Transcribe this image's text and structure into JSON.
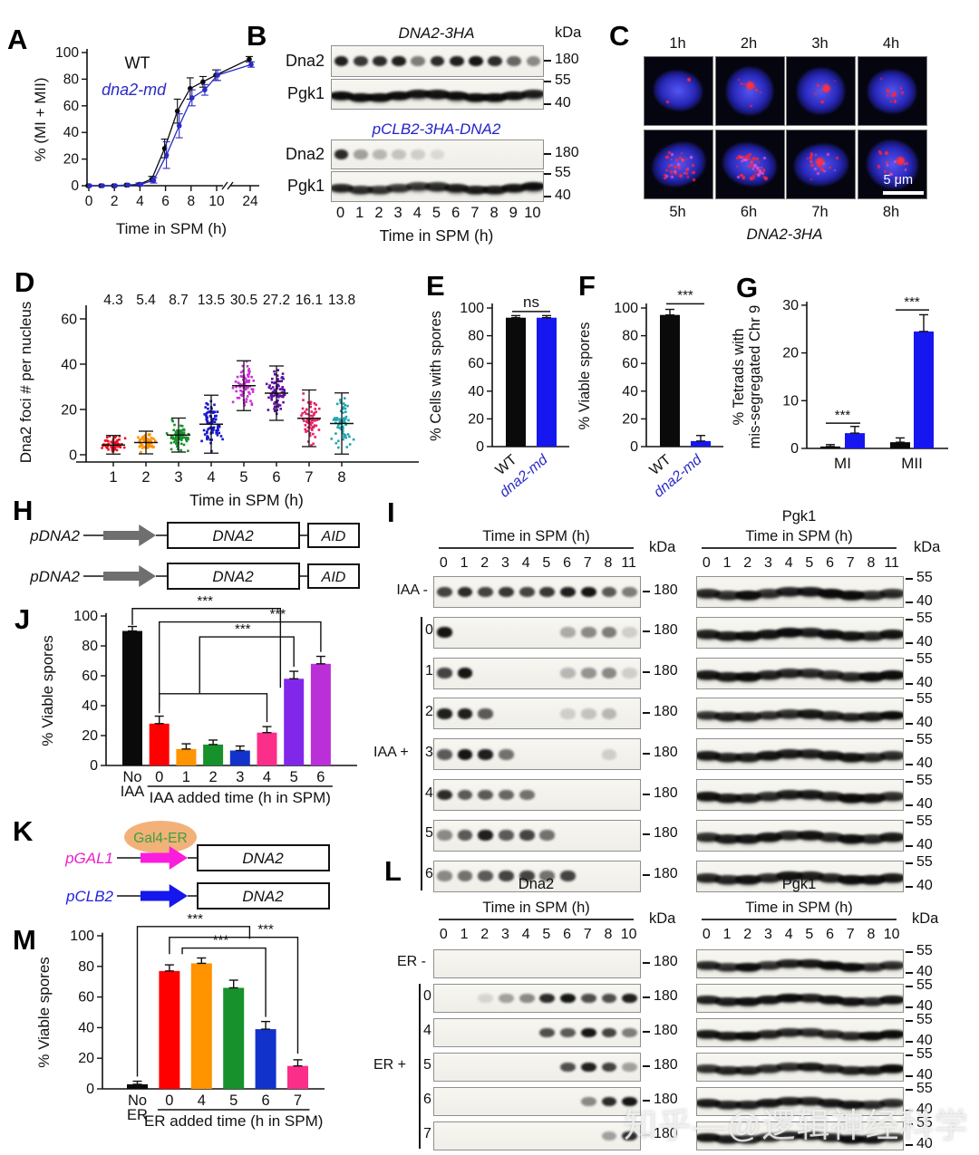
{
  "watermark": "知乎—@逻辑神经科学",
  "letters": {
    "A": "A",
    "B": "B",
    "C": "C",
    "D": "D",
    "E": "E",
    "F": "F",
    "G": "G",
    "H": "H",
    "I": "I",
    "J": "J",
    "K": "K",
    "L": "L",
    "M": "M"
  },
  "chart_data": {
    "A": {
      "type": "line",
      "title": "",
      "ylabel": "% (MI + MII)",
      "xlabel": "Time in SPM (h)",
      "yticks": [
        0,
        20,
        40,
        60,
        80,
        100
      ],
      "xticks": [
        0,
        2,
        4,
        6,
        8,
        10,
        24
      ],
      "x": [
        0,
        1,
        2,
        3,
        4,
        5,
        6,
        7,
        8,
        9,
        10,
        24
      ],
      "series": [
        {
          "name": "WT",
          "color": "#0a0a0a",
          "italic": false,
          "label_xy": [
            2.8,
            88
          ],
          "y": [
            0,
            0,
            0,
            0.5,
            1,
            5,
            28,
            56,
            73,
            78,
            83,
            95
          ],
          "err": [
            0,
            0,
            0,
            0,
            1,
            2,
            7,
            9,
            8,
            4,
            4,
            2
          ]
        },
        {
          "name": "dna2-md",
          "color": "#2a2ac8",
          "italic": true,
          "label_xy": [
            1.0,
            68
          ],
          "y": [
            0,
            0,
            0,
            0.5,
            1,
            4,
            23,
            45,
            66,
            72,
            83,
            91
          ],
          "err": [
            0,
            0,
            0,
            0,
            1,
            2,
            10,
            9,
            6,
            4,
            4,
            2
          ]
        }
      ]
    },
    "D": {
      "type": "scatter-dot",
      "ylabel": "Dna2 foci # per nucleus",
      "xlabel": "Time in SPM (h)",
      "yticks": [
        0,
        20,
        40,
        60
      ],
      "categories": [
        "1",
        "2",
        "3",
        "4",
        "5",
        "6",
        "7",
        "8"
      ],
      "means": [
        4.3,
        5.4,
        8.7,
        13.5,
        30.5,
        27.2,
        16.1,
        13.8
      ],
      "mean_labels": [
        "4.3",
        "5.4",
        "8.7",
        "13.5",
        "30.5",
        "27.2",
        "16.1",
        "13.8"
      ],
      "sds": [
        4.2,
        5.0,
        7.5,
        12.8,
        11.0,
        12.0,
        12.5,
        13.5
      ],
      "counts": [
        60,
        70,
        75,
        80,
        80,
        78,
        68,
        62
      ],
      "colors": [
        "#e81123",
        "#ff9300",
        "#17912b",
        "#1515cc",
        "#c92fd6",
        "#5c10a0",
        "#e81f63",
        "#1fa7ad"
      ]
    },
    "E": {
      "type": "bar",
      "ylabel": "% Cells with spores",
      "yticks": [
        0,
        20,
        40,
        60,
        80,
        100
      ],
      "categories": [
        "WT",
        "dna2-md"
      ],
      "cat_colors": [
        "#111111",
        "#2a2ac8"
      ],
      "cat_italic": [
        false,
        true
      ],
      "values": [
        93,
        93
      ],
      "errors": [
        1.5,
        1.5
      ],
      "bar_colors": [
        "#0a0a0a",
        "#1616f0"
      ],
      "sig": "ns",
      "sig_y": 97.5
    },
    "F": {
      "type": "bar",
      "ylabel": "% Viable spores",
      "yticks": [
        0,
        20,
        40,
        60,
        80,
        100
      ],
      "categories": [
        "WT",
        "dna2-md"
      ],
      "cat_colors": [
        "#111111",
        "#2a2ac8"
      ],
      "cat_italic": [
        false,
        true
      ],
      "values": [
        95,
        4
      ],
      "errors": [
        4,
        4
      ],
      "bar_colors": [
        "#0a0a0a",
        "#1616f0"
      ],
      "sig": "***",
      "sig_y": 103
    },
    "G": {
      "type": "grouped-bar",
      "ylabel_lines": [
        "% Tetrads with",
        "mis-segregated Chr 9"
      ],
      "yticks": [
        0,
        10,
        20,
        30
      ],
      "groups": [
        "MI",
        "MII"
      ],
      "series_colors": [
        "#0a0a0a",
        "#1616f0"
      ],
      "values": [
        [
          0.4,
          3.2
        ],
        [
          1.3,
          24.5
        ]
      ],
      "errors": [
        [
          0.4,
          1.4
        ],
        [
          0.9,
          3.5
        ]
      ],
      "sig": [
        "***",
        "***"
      ],
      "sig_y": [
        5.3,
        29
      ]
    },
    "J": {
      "type": "bar",
      "ylabel": "% Viable spores",
      "xlabel": "IAA added time (h in SPM)",
      "yticks": [
        0,
        20,
        40,
        60,
        80,
        100
      ],
      "categories": [
        [
          "No",
          "IAA"
        ],
        [
          "0"
        ],
        [
          "1"
        ],
        [
          "2"
        ],
        [
          "3"
        ],
        [
          "4"
        ],
        [
          "5"
        ],
        [
          "6"
        ]
      ],
      "values": [
        90,
        28,
        11,
        14,
        10,
        22,
        58,
        68
      ],
      "errors": [
        3,
        5,
        3.5,
        3,
        3,
        4,
        5,
        5
      ],
      "colors": [
        "#0a0a0a",
        "#fe0000",
        "#ff9300",
        "#17912b",
        "#1133cc",
        "#fb2e8a",
        "#8127ea",
        "#bb2fd9"
      ],
      "brackets": [
        {
          "pts": [
            [
              0,
              94
            ],
            [
              0,
              105
            ],
            [
              5.5,
              105
            ],
            [
              5.5,
              52
            ]
          ],
          "stars": [
            2.7,
            105
          ]
        },
        {
          "pts": [
            [
              1,
              35
            ],
            [
              1,
              96
            ],
            [
              7,
              96
            ],
            [
              7,
              76
            ]
          ],
          "stars": [
            5.4,
            96
          ]
        },
        {
          "pts": [
            [
              2.5,
              48
            ],
            [
              2.5,
              86
            ],
            [
              6,
              86
            ],
            [
              6,
              66
            ]
          ],
          "stars": [
            4.1,
            86
          ]
        },
        {
          "pts": [
            [
              1,
              38
            ],
            [
              1,
              48
            ],
            [
              5,
              48
            ],
            [
              5,
              29
            ]
          ],
          "stars": null
        }
      ],
      "star_label": "***"
    },
    "M": {
      "type": "bar",
      "ylabel": "% Viable spores",
      "xlabel": "ER added time (h in SPM)",
      "yticks": [
        0,
        20,
        40,
        60,
        80,
        100
      ],
      "categories": [
        [
          "No",
          "ER"
        ],
        [
          "0"
        ],
        [
          "4"
        ],
        [
          "5"
        ],
        [
          "6"
        ],
        [
          "7"
        ]
      ],
      "values": [
        3,
        77,
        82,
        66,
        39,
        15
      ],
      "errors": [
        2,
        4,
        3.5,
        5,
        5,
        4
      ],
      "colors": [
        "#0a0a0a",
        "#fe0000",
        "#ff9300",
        "#17912b",
        "#1133cc",
        "#fb2e8a"
      ],
      "brackets": [
        {
          "pts": [
            [
              0,
              8
            ],
            [
              0,
              106
            ],
            [
              3.5,
              106
            ],
            [
              3.5,
              98
            ]
          ],
          "stars": [
            1.8,
            106
          ]
        },
        {
          "pts": [
            [
              1,
              88
            ],
            [
              1,
              99
            ],
            [
              5,
              99
            ],
            [
              5,
              23
            ]
          ],
          "stars": [
            4.0,
            99
          ]
        },
        {
          "pts": [
            [
              1.4,
              88
            ],
            [
              1.4,
              92
            ],
            [
              4,
              92
            ],
            [
              4,
              47
            ]
          ],
          "stars": [
            2.6,
            92
          ]
        }
      ],
      "star_label": "***"
    }
  },
  "blots": {
    "B": {
      "kda_header": "kDa",
      "xlabel": "Time in SPM (h)",
      "lanes": [
        "0",
        "1",
        "2",
        "3",
        "4",
        "5",
        "6",
        "7",
        "8",
        "9",
        "10"
      ],
      "groups": [
        {
          "title": "DNA2-3HA",
          "title_color": "#111111",
          "rows": [
            {
              "label": "Dna2",
              "markers": [
                "180"
              ],
              "style": "bands",
              "bands": [
                0.9,
                0.8,
                0.85,
                0.9,
                0.5,
                0.85,
                0.9,
                0.95,
                0.85,
                0.6,
                0.45
              ]
            },
            {
              "label": "Pgk1",
              "markers": [
                "55",
                "40"
              ],
              "style": "wave",
              "bands": [
                0.95,
                0.95,
                0.95,
                0.95,
                0.9,
                0.9,
                0.95,
                0.95,
                0.95,
                0.9,
                0.85
              ]
            }
          ]
        },
        {
          "title": "pCLB2-3HA-DNA2",
          "title_color": "#2222cc",
          "rows": [
            {
              "label": "Dna2",
              "markers": [
                "180"
              ],
              "style": "bands",
              "bands": [
                0.85,
                0.35,
                0.25,
                0.2,
                0.15,
                0.1,
                0,
                0,
                0,
                0,
                0
              ]
            },
            {
              "label": "Pgk1",
              "markers": [
                "55",
                "40"
              ],
              "style": "wave",
              "bands": [
                0.8,
                0.75,
                0.7,
                0.7,
                0.7,
                0.75,
                0.85,
                0.85,
                0.85,
                0.9,
                0.95
              ]
            }
          ]
        }
      ]
    },
    "I": {
      "left_header": "Time in SPM (h)",
      "right_title": "Pgk1",
      "right_header": "Time in SPM (h)",
      "kda_header": "kDa",
      "lanes": [
        "0",
        "1",
        "2",
        "3",
        "4",
        "5",
        "6",
        "7",
        "8",
        "11"
      ],
      "left_marker": [
        "180"
      ],
      "right_markers": [
        "55",
        "40"
      ],
      "bracket_label": "IAA +",
      "rows": [
        {
          "label": "IAA -",
          "bands": [
            0.75,
            0.85,
            0.75,
            0.8,
            0.75,
            0.8,
            0.9,
            0.95,
            0.65,
            0.5
          ]
        },
        {
          "label": "0",
          "bands": [
            0.95,
            0,
            0,
            0,
            0,
            0,
            0.3,
            0.45,
            0.5,
            0.15
          ]
        },
        {
          "label": "1",
          "bands": [
            0.75,
            0.95,
            0,
            0,
            0,
            0,
            0.25,
            0.4,
            0.45,
            0.15
          ]
        },
        {
          "label": "2",
          "bands": [
            0.9,
            0.9,
            0.65,
            0,
            0,
            0,
            0.15,
            0.2,
            0.25,
            0
          ]
        },
        {
          "label": "3",
          "bands": [
            0.65,
            0.95,
            0.9,
            0.55,
            0,
            0,
            0,
            0,
            0.15,
            0
          ]
        },
        {
          "label": "4",
          "bands": [
            0.85,
            0.65,
            0.65,
            0.6,
            0.55,
            0,
            0,
            0,
            0,
            0
          ]
        },
        {
          "label": "5",
          "bands": [
            0.45,
            0.65,
            0.9,
            0.65,
            0.75,
            0.55,
            0,
            0,
            0,
            0
          ]
        },
        {
          "label": "6",
          "bands": [
            0.45,
            0.55,
            0.65,
            0.75,
            0.75,
            0.55,
            0.75,
            0,
            0,
            0
          ]
        }
      ]
    },
    "L": {
      "left_title": "Dna2",
      "left_header": "Time in SPM (h)",
      "right_title": "Pgk1",
      "right_header": "Time in SPM (h)",
      "kda_header": "kDa",
      "lanes": [
        "0",
        "1",
        "2",
        "3",
        "4",
        "5",
        "6",
        "7",
        "8",
        "10"
      ],
      "left_marker": [
        "180"
      ],
      "right_markers": [
        "55",
        "40"
      ],
      "bracket_label": "ER +",
      "rows": [
        {
          "label": "ER -",
          "bands": [
            0,
            0,
            0,
            0,
            0,
            0,
            0,
            0,
            0,
            0
          ]
        },
        {
          "label": "0",
          "bands": [
            0,
            0,
            0.12,
            0.35,
            0.45,
            0.85,
            0.95,
            0.7,
            0.7,
            0.9
          ]
        },
        {
          "label": "4",
          "bands": [
            0,
            0,
            0,
            0,
            0,
            0.7,
            0.65,
            0.95,
            0.75,
            0.5
          ]
        },
        {
          "label": "5",
          "bands": [
            0,
            0,
            0,
            0,
            0,
            0,
            0.7,
            0.9,
            0.75,
            0.35
          ]
        },
        {
          "label": "6",
          "bands": [
            0,
            0,
            0,
            0,
            0,
            0,
            0,
            0.45,
            0.85,
            0.95
          ]
        },
        {
          "label": "7",
          "bands": [
            0,
            0,
            0,
            0,
            0,
            0,
            0,
            0,
            0.35,
            0.85
          ]
        }
      ]
    }
  },
  "microscopy": {
    "top_labels": [
      "1h",
      "2h",
      "3h",
      "4h"
    ],
    "bottom_labels": [
      "5h",
      "6h",
      "7h",
      "8h"
    ],
    "caption": "DNA2-3HA",
    "scalebar_label": "5 μm",
    "cells": [
      {
        "foci": 2,
        "big": false,
        "purple": 0
      },
      {
        "foci": 7,
        "big": true,
        "purple": 0
      },
      {
        "foci": 5,
        "big": true,
        "purple": 0
      },
      {
        "foci": 12,
        "big": false,
        "purple": 0
      },
      {
        "foci": 26,
        "big": false,
        "purple": 14
      },
      {
        "foci": 30,
        "big": false,
        "purple": 16
      },
      {
        "foci": 12,
        "big": true,
        "purple": 8
      },
      {
        "foci": 9,
        "big": true,
        "purple": 6
      }
    ]
  },
  "constructs": {
    "H": {
      "arrow_color": "#6f6f6f",
      "rows": [
        {
          "promoter": "pDNA2",
          "promoter_color": "#111111",
          "gene": "DNA2",
          "tag": "AID"
        },
        {
          "promoter": "pDNA2",
          "promoter_color": "#111111",
          "gene": "DNA2",
          "tag": "AID"
        }
      ]
    },
    "K": {
      "ellipse_label": "Gal4-ER",
      "ellipse_bg": "#f2b179",
      "ellipse_text_color": "#3da03d",
      "rows": [
        {
          "promoter": "pGAL1",
          "promoter_color": "#e821cc",
          "arrow_color": "#fb1ddd",
          "gene": "DNA2"
        },
        {
          "promoter": "pCLB2",
          "promoter_color": "#2222dd",
          "arrow_color": "#1616ee",
          "gene": "DNA2"
        }
      ]
    }
  }
}
